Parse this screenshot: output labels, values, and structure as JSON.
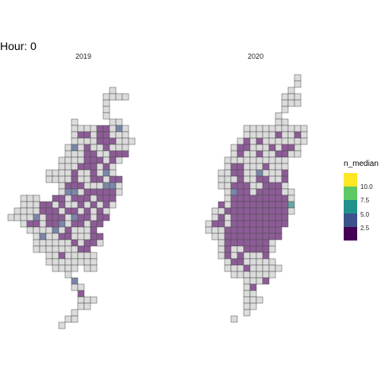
{
  "chart_data": {
    "type": "heatmap",
    "title": "Hour: 0",
    "fill_label": "n_median",
    "legend_position": "right",
    "grid": false,
    "colors": {
      "empty": "#dcdcdc",
      "outline": "#4d4d4d"
    },
    "legend": {
      "ticks": [
        "10.0",
        "7.5",
        "5.0",
        "2.5"
      ],
      "colors": [
        "#fde725",
        "#5ec962",
        "#21918c",
        "#3b528b",
        "#440154"
      ]
    },
    "facets": [
      {
        "label": "2019"
      },
      {
        "label": "2020"
      }
    ]
  }
}
